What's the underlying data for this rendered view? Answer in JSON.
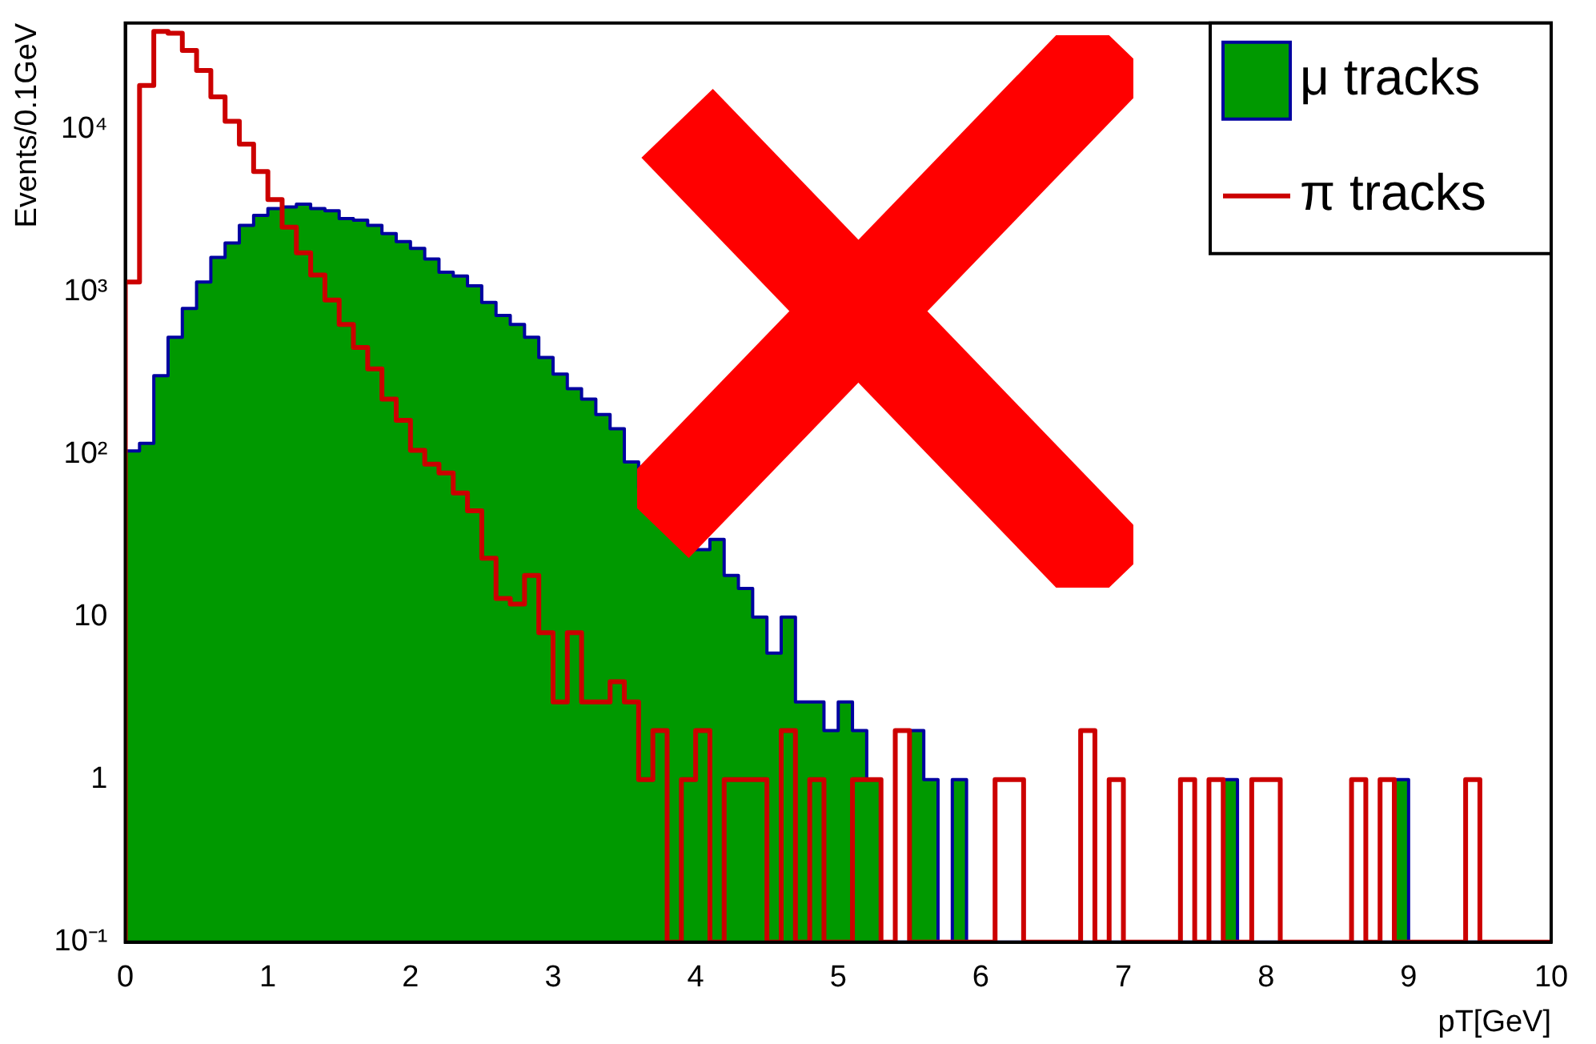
{
  "chart_data": {
    "type": "histogram",
    "xlabel": "pT[GeV]",
    "ylabel": "Events/0.1GeV",
    "bins": [
      0,
      0.1,
      0.2,
      0.3,
      0.4,
      0.5,
      0.6,
      0.7,
      0.8,
      0.9,
      1,
      1.1,
      1.2,
      1.3,
      1.4,
      1.5,
      1.6,
      1.7,
      1.8,
      1.9,
      2,
      2.1,
      2.2,
      2.3,
      2.4,
      2.5,
      2.6,
      2.7,
      2.8,
      2.9,
      3,
      3.1,
      3.2,
      3.3,
      3.4,
      3.5,
      3.6,
      3.7,
      3.8,
      3.9,
      4,
      4.1,
      4.2,
      4.3,
      4.4,
      4.5,
      4.6,
      4.7,
      4.8,
      4.9,
      5,
      5.1,
      5.2,
      5.3,
      5.4,
      5.5,
      5.6,
      5.7,
      5.8,
      5.9,
      6,
      6.1,
      6.2,
      6.3,
      6.4,
      6.5,
      6.6,
      6.7,
      6.8,
      6.9,
      7,
      7.1,
      7.2,
      7.3,
      7.4,
      7.5,
      7.6,
      7.7,
      7.8,
      7.9,
      8,
      8.1,
      8.2,
      8.3,
      8.4,
      8.5,
      8.6,
      8.7,
      8.8,
      8.9,
      9,
      9.1,
      9.2,
      9.3,
      9.4,
      9.5,
      9.6,
      9.7,
      9.8,
      9.9,
      10
    ],
    "series": [
      {
        "name": "μ tracks",
        "color": "#009900",
        "values": [
          105,
          117,
          305,
          525,
          790,
          1150,
          1630,
          2000,
          2560,
          2950,
          3250,
          3330,
          3460,
          3250,
          3150,
          2820,
          2760,
          2560,
          2280,
          2040,
          1850,
          1590,
          1320,
          1250,
          1090,
          860,
          716,
          630,
          525,
          395,
          312,
          254,
          219,
          176,
          144,
          90,
          62,
          62,
          38,
          38,
          26,
          30,
          18,
          15,
          10,
          6,
          10,
          3,
          3,
          2,
          3,
          2,
          1,
          null,
          null,
          2,
          1,
          null,
          1,
          null,
          null,
          null,
          null,
          null,
          null,
          null,
          null,
          null,
          null,
          null,
          null,
          null,
          null,
          null,
          null,
          null,
          null,
          1,
          null,
          null,
          null,
          null,
          null,
          null,
          null,
          null,
          null,
          null,
          null,
          1,
          null,
          null,
          null,
          null,
          null,
          null,
          null,
          null,
          null,
          null
        ]
      },
      {
        "name": "π tracks",
        "color": "#cc0000",
        "values": [
          1150,
          18600,
          40000,
          39000,
          30500,
          23000,
          15800,
          11200,
          8100,
          5500,
          3700,
          2500,
          1740,
          1270,
          890,
          630,
          455,
          336,
          219,
          162,
          106,
          87,
          77,
          58,
          45,
          23,
          13,
          12,
          18,
          8,
          3,
          8,
          3,
          3,
          4,
          3,
          1,
          2,
          null,
          1,
          2,
          null,
          1,
          1,
          1,
          null,
          2,
          null,
          1,
          null,
          null,
          1,
          1,
          null,
          2,
          null,
          null,
          null,
          null,
          null,
          null,
          1,
          1,
          null,
          null,
          null,
          null,
          2,
          null,
          1,
          null,
          null,
          null,
          null,
          1,
          null,
          1,
          null,
          null,
          1,
          1,
          null,
          null,
          null,
          null,
          null,
          1,
          null,
          1,
          null,
          null,
          null,
          null,
          null,
          1,
          null,
          null,
          null,
          null,
          null
        ]
      }
    ],
    "xlim": [
      0,
      10
    ],
    "xticks": [
      0,
      1,
      2,
      3,
      4,
      5,
      6,
      7,
      8,
      9,
      10
    ],
    "ylim": [
      0.1,
      45000
    ],
    "yticks": [
      {
        "value": 0.1,
        "label": "10⁻¹"
      },
      1,
      10,
      {
        "value": 100,
        "label": "10²"
      },
      {
        "value": 1000,
        "label": "10³"
      },
      {
        "value": 10000,
        "label": "10⁴"
      }
    ],
    "log": "y",
    "grid": false,
    "legend": "top right",
    "marker": "none",
    "line_style": "solid"
  }
}
